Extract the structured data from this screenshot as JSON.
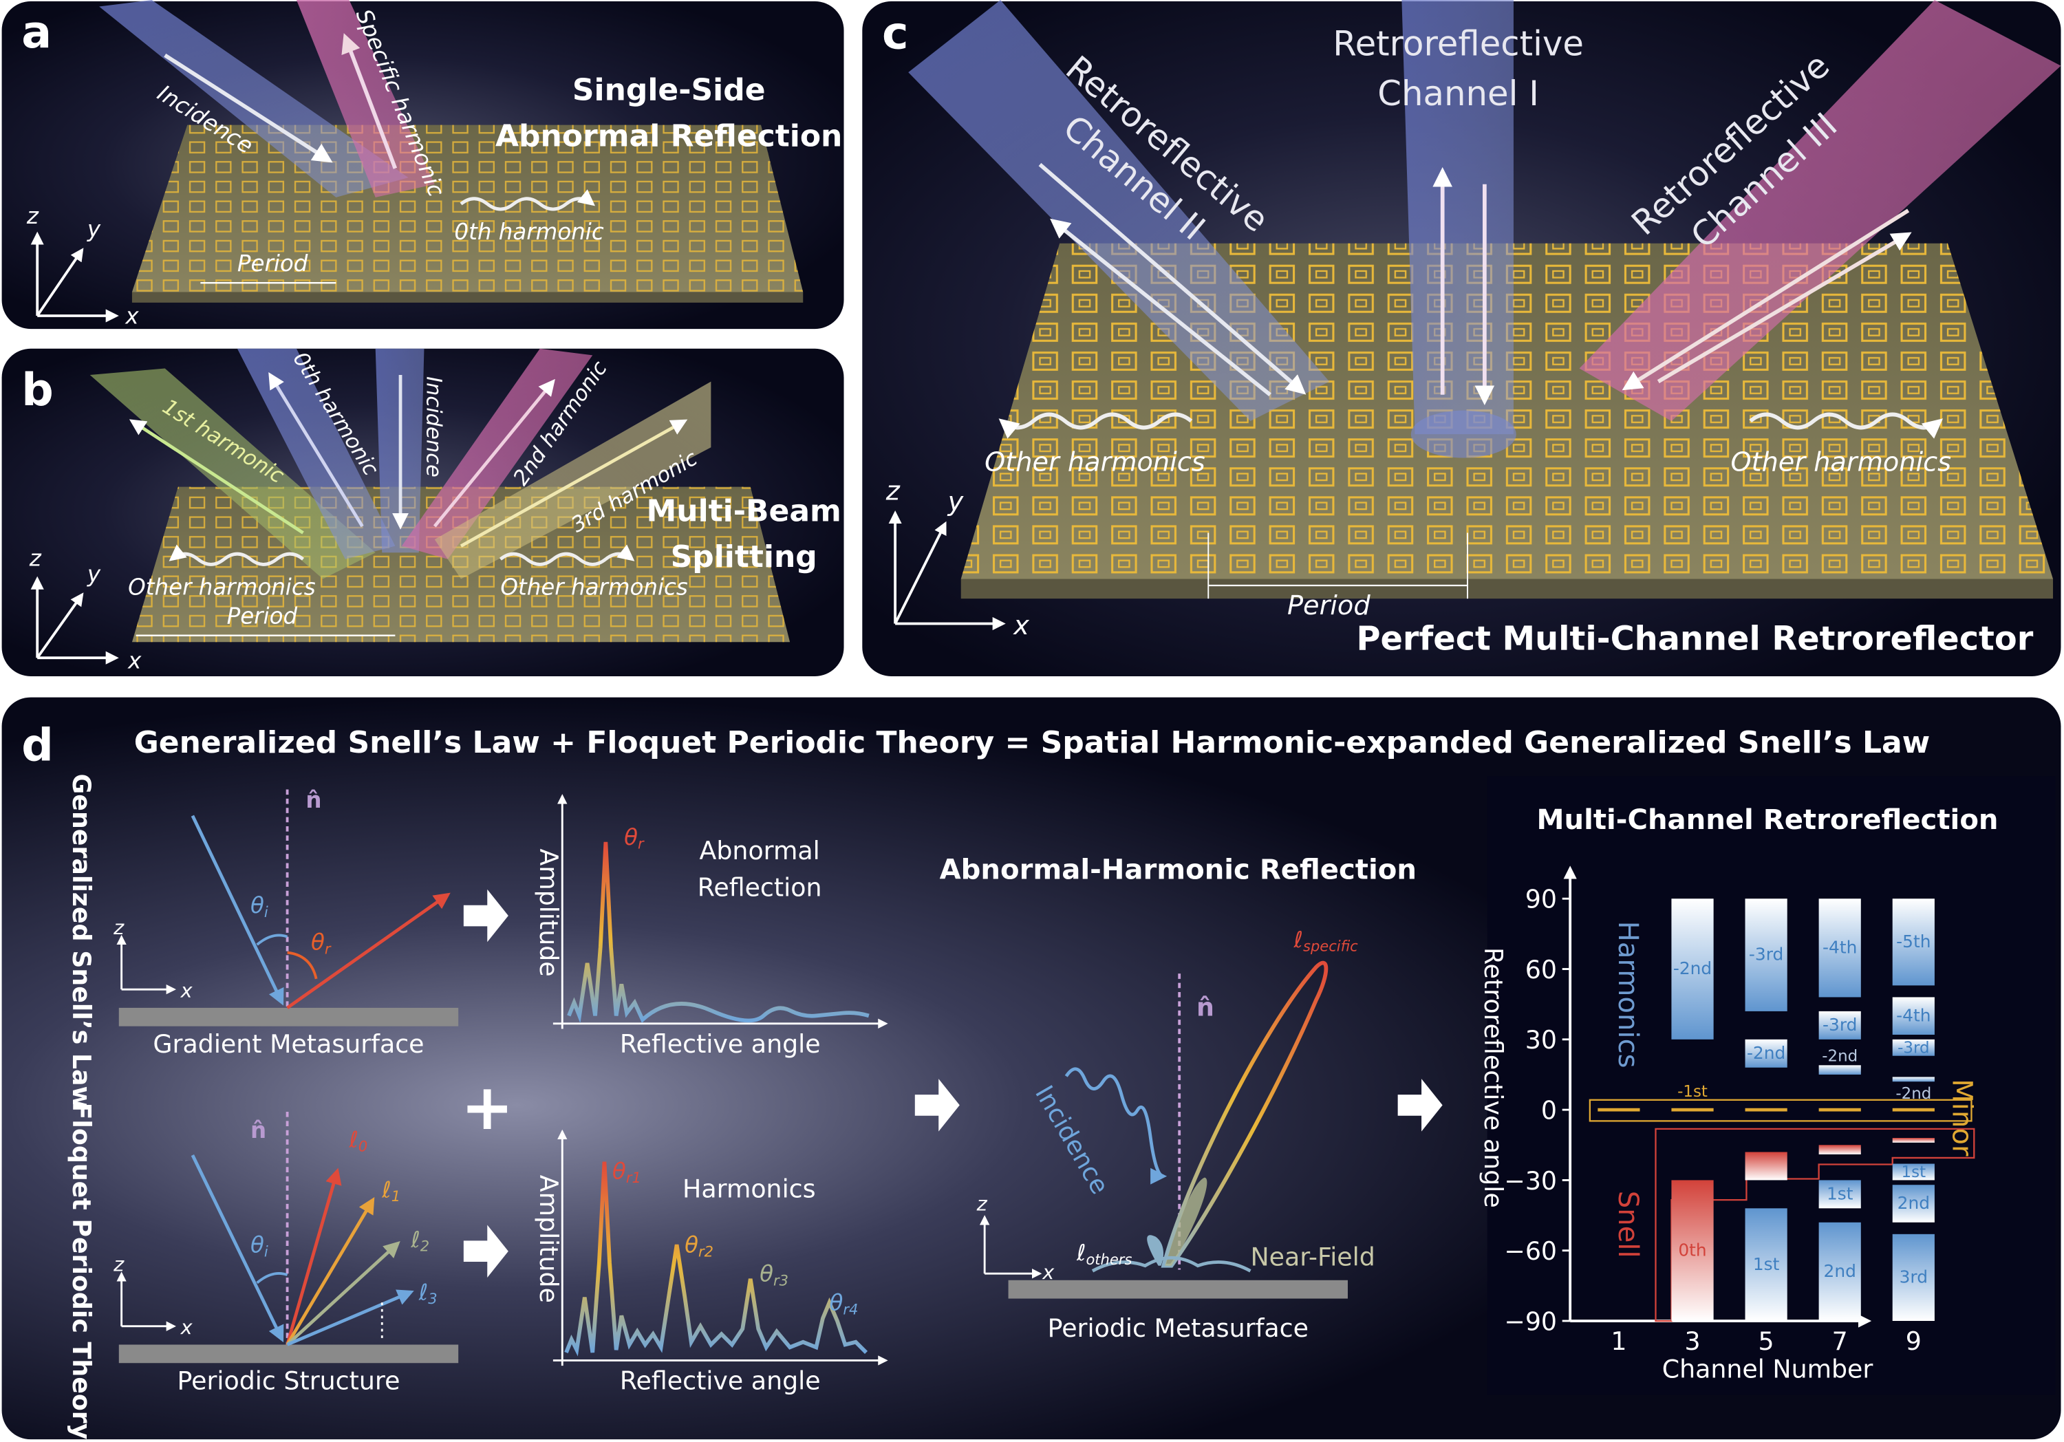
{
  "panel_a": {
    "letter": "a",
    "title_line1": "Single-Side",
    "title_line2": "Abnormal Reflection",
    "incidence": "Incidence",
    "specific_harmonic": "Specific harmonic",
    "zeroth_harmonic": "0th harmonic",
    "period": "Period",
    "axis_z": "z",
    "axis_y": "y",
    "axis_x": "x"
  },
  "panel_b": {
    "letter": "b",
    "title_line1": "Multi-Beam",
    "title_line2": "Splitting",
    "beam_1st": "1st harmonic",
    "beam_0th": "0th harmonic",
    "beam_incidence": "Incidence",
    "beam_2nd": "2nd harmonic",
    "beam_3rd": "3rd harmonic",
    "other_left": "Other harmonics",
    "other_right": "Other harmonics",
    "period": "Period",
    "axis_z": "z",
    "axis_y": "y",
    "axis_x": "x"
  },
  "panel_c": {
    "letter": "c",
    "channel1_line1": "Retroreflective",
    "channel1_line2": "Channel I",
    "channel2_line1": "Retroreflective",
    "channel2_line2": "Channel II",
    "channel3_line1": "Retroreflective",
    "channel3_line2": "Channel III",
    "other_left": "Other harmonics",
    "other_right": "Other harmonics",
    "period": "Period",
    "caption": "Perfect Multi-Channel Retroreflector",
    "axis_z": "z",
    "axis_y": "y",
    "axis_x": "x"
  },
  "panel_d": {
    "letter": "d",
    "title": "Generalized Snell’s Law + Floquet Periodic Theory = Spatial Harmonic-expanded Generalized Snell’s Law",
    "row1_label": "Generalized Snell’s Law",
    "row2_label": "Floquet Periodic Theory",
    "normal": "n̂",
    "theta": "θ",
    "sub_i": "i",
    "sub_r": "r",
    "axis_z": "z",
    "axis_x": "x",
    "gradient_caption": "Gradient Metasurface",
    "periodic_caption": "Periodic Structure",
    "ell": "ℓ",
    "ell_subs": [
      "0",
      "1",
      "2",
      "3"
    ],
    "amplitude": "Amplitude",
    "reflective_angle": "Reflective angle",
    "abnormal_line1": "Abnormal",
    "abnormal_line2": "Reflection",
    "harmonics": "Harmonics",
    "harm_subs": [
      "r1",
      "r2",
      "r3",
      "r4"
    ],
    "plus": "+",
    "center_title": "Abnormal-Harmonic Reflection",
    "incidence": "Incidence",
    "ell_specific_sub": "specific",
    "ell_others_sub": "others",
    "near_field": "Near-Field",
    "periodic_metasurface": "Periodic Metasurface",
    "colors": {
      "blue": "#6fa6dc",
      "red": "#e04a3a",
      "orange": "#e8a23a",
      "sage": "#a9b38f",
      "purple": "#b89ad0",
      "gray": "#8a8a8a"
    }
  },
  "chart_data": {
    "type": "bar",
    "title": "Multi-Channel Retroreflection",
    "xlabel": "Channel Number",
    "ylabel": "Retroreflective angle",
    "xticks": [
      "1",
      "3",
      "5",
      "7",
      "9"
    ],
    "yticks": [
      "90",
      "60",
      "30",
      "0",
      "−30",
      "−60",
      "−90"
    ],
    "ylim": [
      -90,
      90
    ],
    "group_labels": {
      "harmonics": "Harmonics",
      "snell": "Snell",
      "minor": "Minor"
    },
    "colors": {
      "harmonics": "#3f7fc0",
      "snell": "#d2423a",
      "minor": "#e0a832"
    },
    "minor_label": "-1st",
    "minor_channels": [
      1,
      3,
      5,
      7,
      9
    ],
    "minor_value": 0,
    "bars": [
      {
        "channel": 3,
        "from": 30,
        "to": 90,
        "label": "-2nd",
        "kind": "harmonic"
      },
      {
        "channel": 3,
        "from": -90,
        "to": -30,
        "label": "0th",
        "kind": "snell"
      },
      {
        "channel": 5,
        "from": 42,
        "to": 90,
        "label": "-3rd",
        "kind": "harmonic"
      },
      {
        "channel": 5,
        "from": 18,
        "to": 30,
        "label": "-2nd",
        "kind": "harmonic"
      },
      {
        "channel": 5,
        "from": -30,
        "to": -18,
        "label": "",
        "kind": "snell"
      },
      {
        "channel": 5,
        "from": -90,
        "to": -42,
        "label": "1st",
        "kind": "harmonic"
      },
      {
        "channel": 7,
        "from": 48,
        "to": 90,
        "label": "-4th",
        "kind": "harmonic"
      },
      {
        "channel": 7,
        "from": 30,
        "to": 42,
        "label": "-3rd",
        "kind": "harmonic"
      },
      {
        "channel": 7,
        "from": 15,
        "to": 19,
        "label": "-2nd",
        "kind": "harmonic",
        "label_pos": "above"
      },
      {
        "channel": 7,
        "from": -19,
        "to": -15,
        "label": "",
        "kind": "snell"
      },
      {
        "channel": 7,
        "from": -42,
        "to": -30,
        "label": "1st",
        "kind": "harmonic"
      },
      {
        "channel": 7,
        "from": -90,
        "to": -48,
        "label": "2nd",
        "kind": "harmonic"
      },
      {
        "channel": 9,
        "from": 53,
        "to": 90,
        "label": "-5th",
        "kind": "harmonic"
      },
      {
        "channel": 9,
        "from": 32,
        "to": 48,
        "label": "-4th",
        "kind": "harmonic"
      },
      {
        "channel": 9,
        "from": 23,
        "to": 30,
        "label": "-3rd",
        "kind": "harmonic"
      },
      {
        "channel": 9,
        "from": 12,
        "to": 14,
        "label": "-2nd",
        "kind": "harmonic",
        "label_pos": "below"
      },
      {
        "channel": 9,
        "from": -14,
        "to": -12,
        "label": "",
        "kind": "snell"
      },
      {
        "channel": 9,
        "from": -30,
        "to": -23,
        "label": "1st",
        "kind": "harmonic"
      },
      {
        "channel": 9,
        "from": -48,
        "to": -32,
        "label": "2nd",
        "kind": "harmonic"
      },
      {
        "channel": 9,
        "from": -90,
        "to": -53,
        "label": "3rd",
        "kind": "harmonic"
      }
    ]
  }
}
